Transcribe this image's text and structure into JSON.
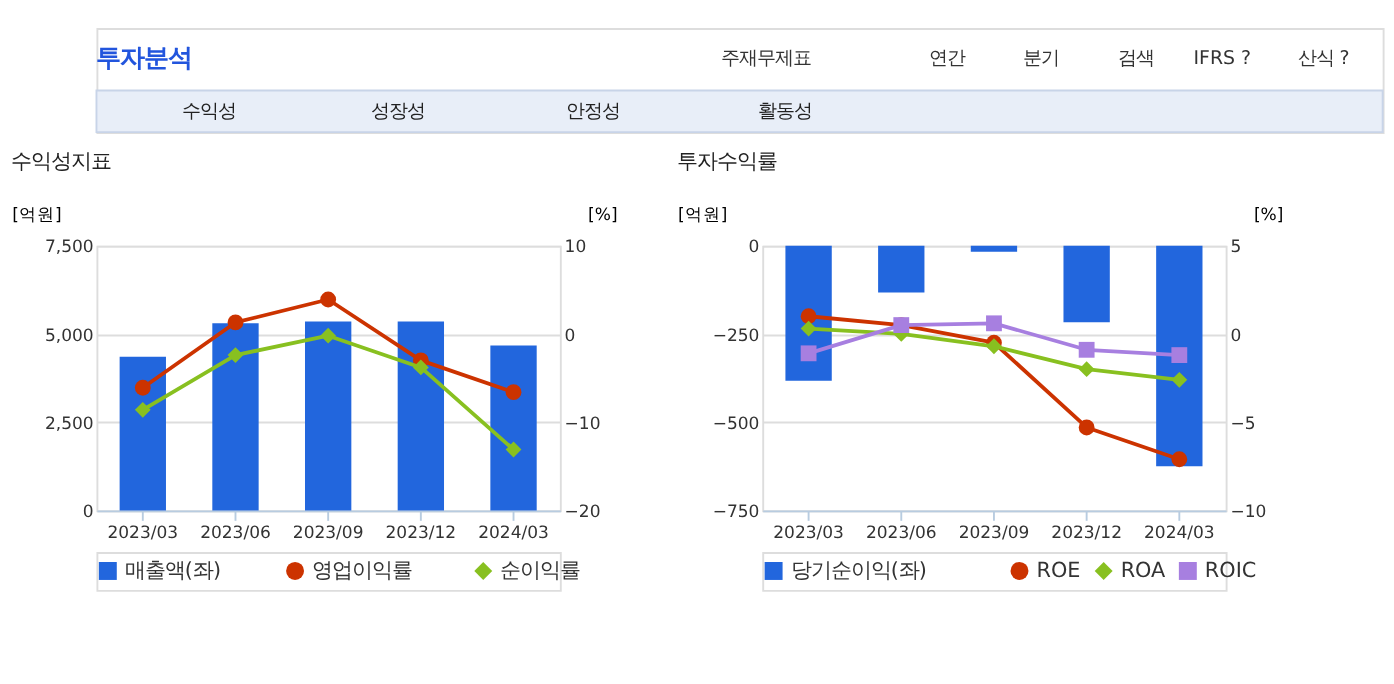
{
  "chart_data": [
    {
      "type": "bar",
      "title": "수익성지표",
      "ylabel": "[억원]",
      "y2label": "[%]",
      "annotations": [
        "투자분석",
        "주재무제표",
        "연간",
        "분기",
        "검색",
        "IFRS ?",
        "산식 ?",
        "수익성",
        "성장성",
        "안정성",
        "활동성"
      ],
      "categories": [
        "2023/03",
        "2023/06",
        "2023/09",
        "2023/12",
        "2024/03"
      ],
      "ylim": [
        0,
        7500
      ],
      "yticks": [
        0,
        {
          "value": 2500,
          "label": "2,500"
        },
        {
          "value": 5000,
          "label": "5,000"
        },
        {
          "value": 7500,
          "label": "7,500"
        }
      ],
      "y2lim": [
        -20,
        10
      ],
      "y2ticks": [
        -20,
        -10,
        0,
        10
      ],
      "grid": "y",
      "legend": "bottom",
      "series": [
        {
          "name": "매출액(좌)",
          "color": "#2266dd",
          "values": [
            4350,
            5300,
            5350,
            5350,
            4670
          ]
        },
        {
          "name": "영업이익률",
          "type": "line",
          "axis": "y2",
          "marker": "circle",
          "color": "#cc3300",
          "values": [
            -6.1,
            1.3,
            3.9,
            -3.0,
            -6.6
          ]
        },
        {
          "name": "순이익률",
          "type": "line",
          "axis": "y2",
          "marker": "diamond",
          "color": "#88c020",
          "values": [
            -8.6,
            -2.4,
            -0.2,
            -3.8,
            -13.1
          ]
        }
      ]
    },
    {
      "type": "bar",
      "title": "투자수익률",
      "ylabel": "[억원]",
      "y2label": "[%]",
      "categories": [
        "2023/03",
        "2023/06",
        "2023/09",
        "2023/12",
        "2024/03"
      ],
      "ylim": [
        -750,
        0
      ],
      "yticks": [
        -750,
        -500,
        -250,
        0
      ],
      "y2lim": [
        -10,
        5
      ],
      "y2ticks": [
        -10,
        -5,
        0,
        5
      ],
      "grid": "y",
      "legend": "bottom",
      "series": [
        {
          "name": "당기순이익(좌)",
          "color": "#2266dd",
          "values": [
            -383,
            -133,
            -17,
            -217,
            -625
          ]
        },
        {
          "name": "ROE",
          "type": "line",
          "axis": "y2",
          "marker": "circle",
          "color": "#cc3300",
          "values": [
            1.0,
            0.5,
            -0.5,
            -5.3,
            -7.1
          ]
        },
        {
          "name": "ROA",
          "type": "line",
          "axis": "y2",
          "marker": "diamond",
          "color": "#88c020",
          "values": [
            0.3,
            0.0,
            -0.7,
            -2.0,
            -2.6
          ]
        },
        {
          "name": "ROIC",
          "type": "line",
          "axis": "y2",
          "marker": "square",
          "color": "#a77fe0",
          "values": [
            -1.1,
            0.5,
            0.6,
            -0.9,
            -1.2
          ]
        }
      ]
    }
  ]
}
